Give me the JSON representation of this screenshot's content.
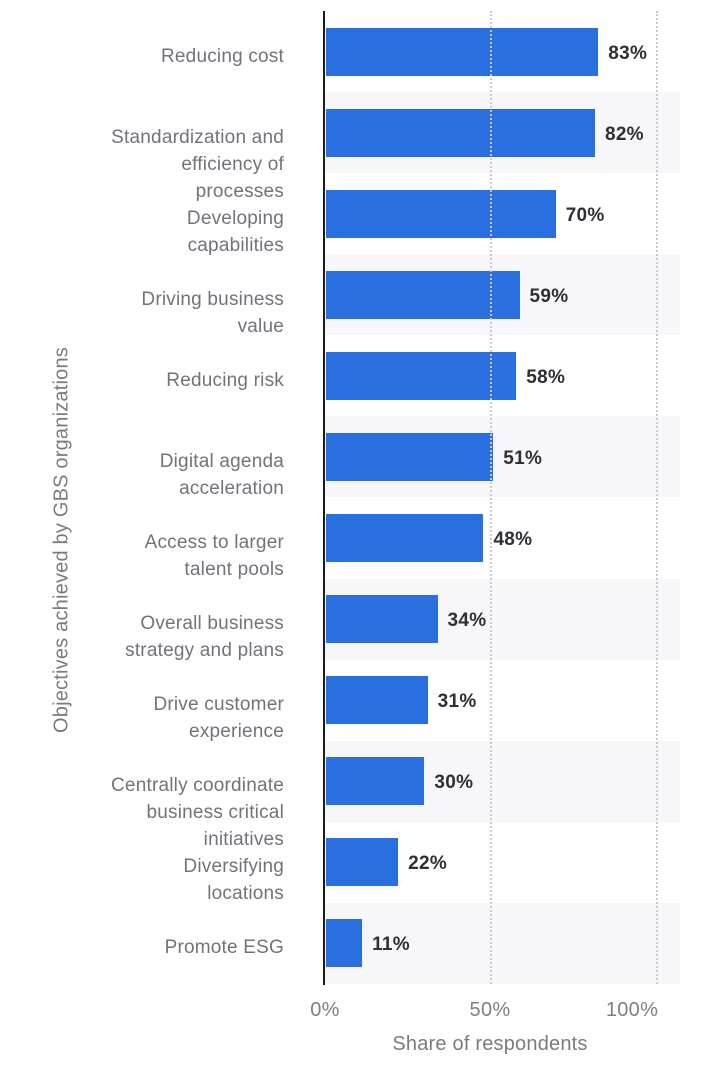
{
  "chart_data": {
    "type": "bar",
    "orientation": "horizontal",
    "title": "",
    "xlabel": "Share of respondents",
    "ylabel": "Objectives achieved by GBS organizations",
    "x_ticks": [
      "0%",
      "50%",
      "100%"
    ],
    "x_tick_values": [
      0,
      50,
      100
    ],
    "xlim": [
      0,
      100
    ],
    "grid": "vertical dotted gridlines at 50% and 100%",
    "legend": "none",
    "categories": [
      "Reducing cost",
      "Standardization and\nefficiency of\nprocesses",
      "Developing\ncapabilities",
      "Driving business\nvalue",
      "Reducing risk",
      "Digital agenda\nacceleration",
      "Access to larger\ntalent pools",
      "Overall business\nstrategy and plans",
      "Drive customer\nexperience",
      "Centrally coordinate\nbusiness critical\ninitiatives",
      "Diversifying\nlocations",
      "Promote ESG"
    ],
    "values": [
      83,
      82,
      70,
      59,
      58,
      51,
      48,
      34,
      31,
      30,
      22,
      11
    ],
    "value_labels": [
      "83%",
      "82%",
      "70%",
      "59%",
      "58%",
      "51%",
      "48%",
      "34%",
      "31%",
      "30%",
      "22%",
      "11%"
    ]
  },
  "colors": {
    "bar": "#2a6fdf",
    "row_stripe": "#f7f7f9",
    "axis_line": "#1b1b20",
    "gridline": "#c9c9cf",
    "category_text": "#72727b",
    "value_text": "#2e2e34",
    "tick_text": "#7e7e85",
    "axis_title_text": "#7a7a81",
    "background": "#ffffff"
  }
}
